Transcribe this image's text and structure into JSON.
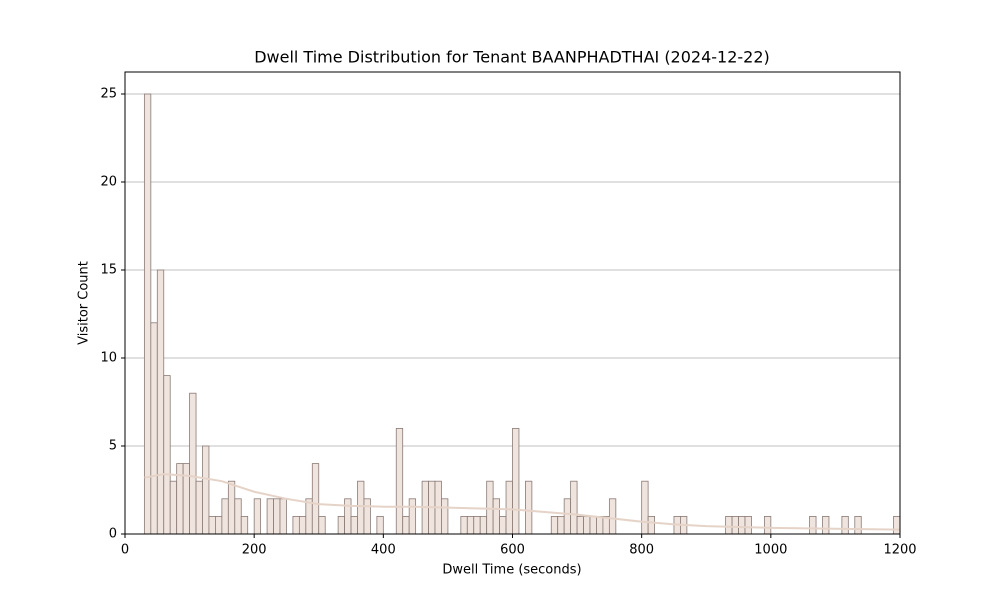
{
  "chart_data": {
    "type": "histogram",
    "title": "Dwell Time Distribution for Tenant BAANPHADTHAI (2024-12-22)",
    "x_label": "Dwell Time (seconds)",
    "y_label": "Visitor Count",
    "bins": [
      30,
      40,
      50,
      60,
      70,
      80,
      90,
      100,
      110,
      120,
      130,
      140,
      150,
      160,
      170,
      180,
      190,
      200,
      210,
      220,
      230,
      240,
      250,
      260,
      270,
      280,
      290,
      300,
      310,
      320,
      330,
      340,
      350,
      360,
      370,
      380,
      390,
      400,
      410,
      420,
      430,
      440,
      450,
      460,
      470,
      480,
      490,
      500,
      510,
      520,
      530,
      540,
      550,
      560,
      570,
      580,
      590,
      600,
      610,
      620,
      630,
      640,
      650,
      660,
      670,
      680,
      690,
      700,
      710,
      720,
      730,
      740,
      750,
      760,
      770,
      780,
      790,
      800,
      810,
      820,
      830,
      840,
      850,
      860,
      870,
      880,
      890,
      900,
      910,
      920,
      930,
      940,
      950,
      960,
      970,
      980,
      990,
      1000,
      1010,
      1020,
      1030,
      1040,
      1050,
      1060,
      1070,
      1080,
      1090,
      1100,
      1110,
      1120,
      1130,
      1140,
      1150,
      1160,
      1170,
      1180,
      1190,
      1200
    ],
    "values": [
      25,
      12,
      15,
      9,
      3,
      4,
      4,
      8,
      3,
      5,
      1,
      1,
      2,
      3,
      2,
      1,
      0,
      2,
      0,
      2,
      2,
      2,
      0,
      1,
      1,
      2,
      4,
      1,
      0,
      0,
      1,
      2,
      1,
      3,
      2,
      0,
      1,
      0,
      0,
      6,
      1,
      2,
      0,
      3,
      3,
      3,
      2,
      0,
      0,
      1,
      1,
      1,
      1,
      3,
      2,
      1,
      3,
      6,
      0,
      3,
      0,
      0,
      0,
      1,
      1,
      2,
      3,
      1,
      1,
      1,
      1,
      1,
      2,
      0,
      0,
      0,
      0,
      3,
      1,
      0,
      0,
      0,
      1,
      1,
      0,
      0,
      0,
      0,
      0,
      0,
      1,
      1,
      1,
      1,
      0,
      0,
      1,
      0,
      0,
      0,
      0,
      0,
      0,
      1,
      0,
      1,
      0,
      0,
      1,
      0,
      1,
      0,
      0,
      0,
      0,
      0,
      1
    ],
    "color": "#f0e4df",
    "edge_color": "#8a7a75",
    "kde": {
      "x": [
        30,
        60,
        100,
        150,
        200,
        250,
        300,
        350,
        400,
        450,
        500,
        550,
        600,
        650,
        700,
        750,
        800,
        850,
        900,
        950,
        1000,
        1100,
        1200
      ],
      "values": [
        3.2,
        3.4,
        3.3,
        3.0,
        2.4,
        2.0,
        1.7,
        1.6,
        1.55,
        1.55,
        1.5,
        1.45,
        1.4,
        1.25,
        1.1,
        0.9,
        0.7,
        0.55,
        0.45,
        0.4,
        0.35,
        0.3,
        0.25
      ],
      "color": "#e6d3c7"
    },
    "xlim": [
      0,
      1200
    ],
    "ylim": [
      0,
      26.25
    ],
    "xticks": [
      0,
      200,
      400,
      600,
      800,
      1000,
      1200
    ],
    "yticks": [
      0,
      5,
      10,
      15,
      20,
      25
    ],
    "grid": true
  }
}
